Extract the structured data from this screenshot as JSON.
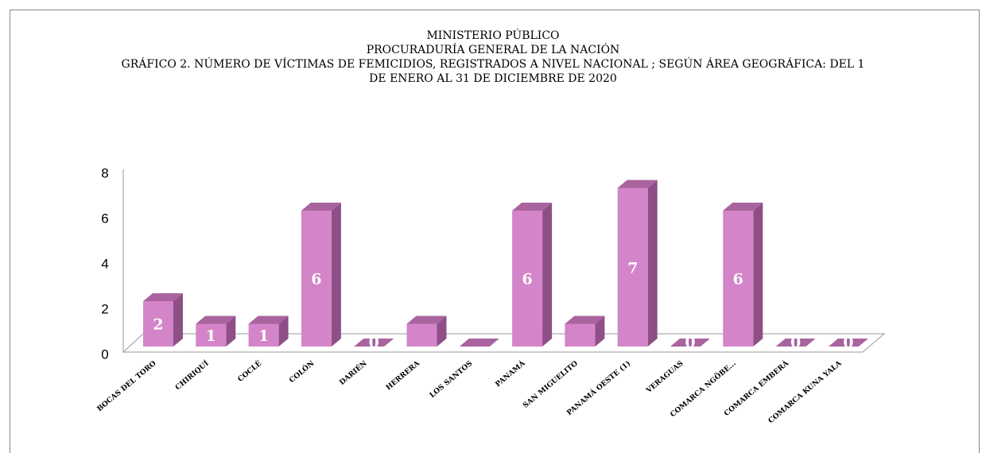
{
  "chart_data": {
    "type": "bar3d",
    "title": [
      "MINISTERIO PÚBLICO",
      "PROCURADURÍA GENERAL DE LA NACIÓN",
      "GRÁFICO 2. NÚMERO DE VÍCTIMAS DE FEMICIDIOS, REGISTRADOS A NIVEL NACIONAL ; SEGÚN ÁREA GEOGRÁFICA:  DEL 1",
      "DE ENERO AL 31  DE DICIEMBRE DE 2020"
    ],
    "categories": [
      "BOCAS DEL TORO",
      "CHIRIQUÍ",
      "COCLÉ",
      "COLÓN",
      "DARIÉN",
      "HERRERA",
      "LOS SANTOS",
      "PANAMÁ",
      "SAN MIGUELITO",
      "PANAMÁ OESTE (1)",
      "VERAGUAS",
      "COMARCA NGÖBE...",
      "COMARCA EMBERÁ",
      "COMARCA KUNA YALA"
    ],
    "values": [
      2,
      1,
      1,
      6,
      0,
      1,
      0,
      6,
      1,
      7,
      0,
      6,
      0,
      0
    ],
    "value_labels": [
      "2",
      "1",
      "1",
      "6",
      "0",
      null,
      null,
      "6",
      null,
      "7",
      "0",
      "6",
      "0",
      "0"
    ],
    "color": "#d484c8",
    "ylim": [
      0,
      8
    ],
    "yticks": [
      0,
      2,
      4,
      6,
      8
    ],
    "grid": false
  }
}
